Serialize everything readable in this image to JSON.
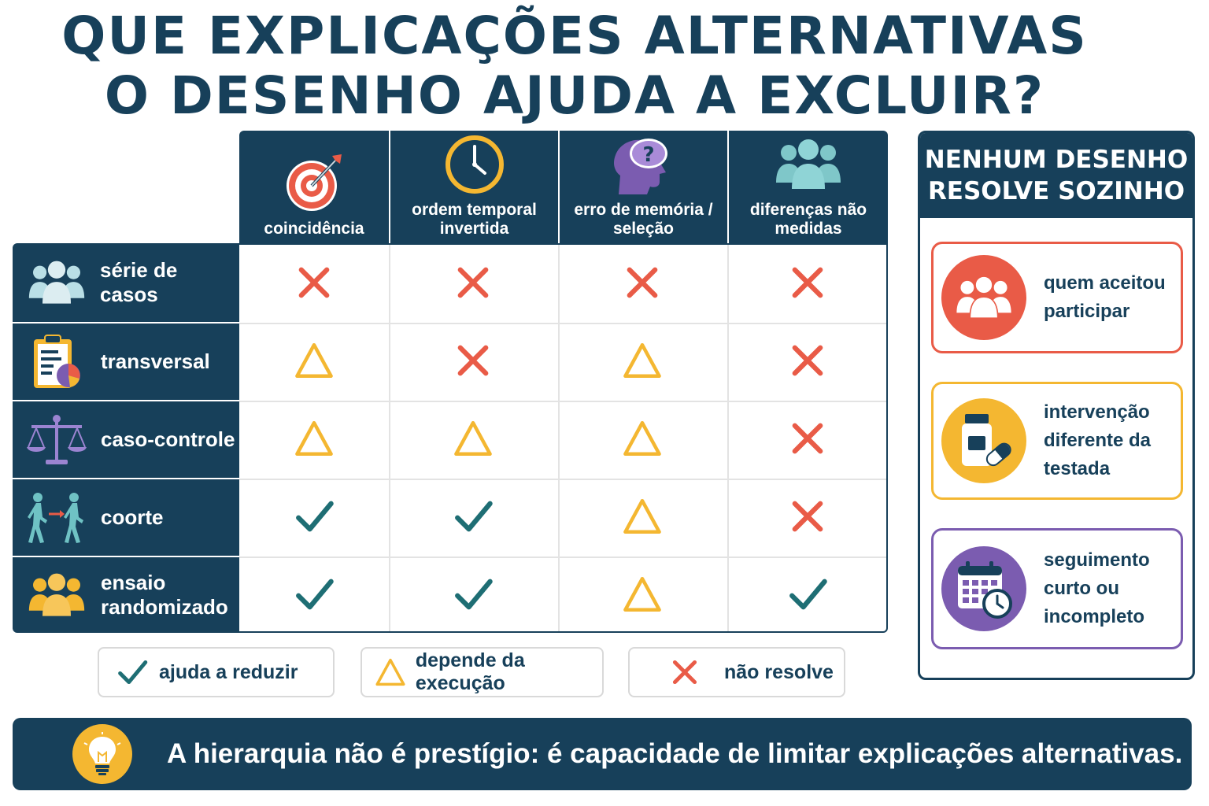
{
  "title": {
    "line1": "QUE EXPLICAÇÕES ALTERNATIVAS",
    "line2": "O DESENHO AJUDA A EXCLUIR?"
  },
  "columns": [
    {
      "label": "coincidência",
      "icon": "target-icon"
    },
    {
      "label": "ordem temporal\ninvertida",
      "icon": "clock-icon"
    },
    {
      "label": "erro de memória /\nseleção",
      "icon": "head-question-icon"
    },
    {
      "label": "diferenças não\nmedidas",
      "icon": "people-group-icon"
    }
  ],
  "rows": [
    {
      "label": "série de casos",
      "icon": "people-group-icon",
      "marks": [
        "x",
        "x",
        "x",
        "x"
      ]
    },
    {
      "label": "transversal",
      "icon": "clipboard-chart-icon",
      "marks": [
        "triangle",
        "x",
        "triangle",
        "x"
      ]
    },
    {
      "label": "caso-controle",
      "icon": "balance-scale-icon",
      "marks": [
        "triangle",
        "triangle",
        "triangle",
        "x"
      ]
    },
    {
      "label": "coorte",
      "icon": "walking-people-icon",
      "marks": [
        "check",
        "check",
        "triangle",
        "x"
      ]
    },
    {
      "label": "ensaio\nrandomizado",
      "icon": "people-group-icon",
      "marks": [
        "check",
        "check",
        "triangle",
        "check"
      ]
    }
  ],
  "legend": [
    {
      "symbol": "check",
      "label": "ajuda a reduzir"
    },
    {
      "symbol": "triangle",
      "label": "depende da execução"
    },
    {
      "symbol": "x",
      "label": "não resolve"
    }
  ],
  "side_panel": {
    "title": "NENHUM DESENHO\nRESOLVE SOZINHO",
    "cards": [
      {
        "text": "quem aceitou\nparticipar",
        "icon": "people-group-icon",
        "color": "#e95b47"
      },
      {
        "text": "intervenção\ndiferente da\ntestada",
        "icon": "pill-bottle-icon",
        "color": "#f4b731"
      },
      {
        "text": "seguimento\ncurto ou\nincompleto",
        "icon": "calendar-clock-icon",
        "color": "#7b5cb0"
      }
    ]
  },
  "footer": {
    "text": "A hierarquia não é prestígio: é capacidade de limitar explicações alternativas.",
    "icon": "lightbulb-icon"
  },
  "colors": {
    "navy": "#17405a",
    "check": "#1e6e74",
    "triangle": "#f4b731",
    "x": "#e95b47"
  }
}
